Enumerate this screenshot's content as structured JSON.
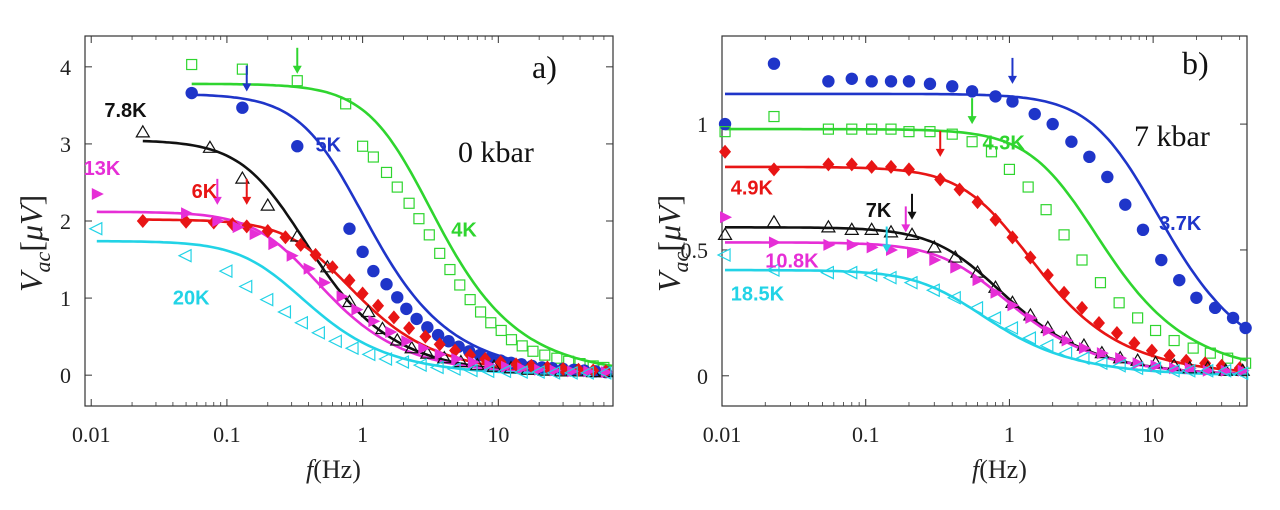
{
  "chart_data": [
    {
      "type": "scatter",
      "panel_label": "a)",
      "annotation": "0 kbar",
      "xlabel_var": "f",
      "xlabel_unit": "(Hz)",
      "ylabel": "V_ac [μV]",
      "xscale": "log",
      "xlim": [
        0.009,
        70
      ],
      "ylim": [
        -0.4,
        4.4
      ],
      "xticks": [
        0.01,
        0.1,
        1,
        10
      ],
      "xtick_labels": [
        "0.01",
        "0.1",
        "1",
        "10"
      ],
      "yticks": [
        0,
        1,
        2,
        3,
        4
      ],
      "ytick_labels": [
        "0",
        "1",
        "2",
        "3",
        "4"
      ],
      "series": [
        {
          "name": "4K",
          "color": "#2fd52f",
          "marker": "square-open",
          "fit": {
            "A": 3.78,
            "fc": 2.2
          },
          "arrow": {
            "x": 0.33,
            "y": 3.78
          },
          "label_pos": {
            "x": 4.5,
            "y": 1.8
          },
          "x": [
            0.055,
            0.13,
            0.33,
            0.75,
            1.0,
            1.2,
            1.5,
            1.8,
            2.2,
            2.6,
            3.1,
            3.7,
            4.4,
            5.2,
            6.2,
            7.4,
            8.8,
            10.5,
            12.5,
            15,
            18,
            22,
            27,
            33,
            40,
            50,
            60
          ],
          "y": [
            4.03,
            3.97,
            3.82,
            3.52,
            2.97,
            2.83,
            2.63,
            2.44,
            2.23,
            2.03,
            1.82,
            1.58,
            1.37,
            1.17,
            0.98,
            0.82,
            0.68,
            0.58,
            0.46,
            0.38,
            0.31,
            0.26,
            0.22,
            0.18,
            0.15,
            0.12,
            0.1
          ]
        },
        {
          "name": "5K",
          "color": "#1f35c9",
          "marker": "circle-filled",
          "fit": {
            "A": 3.65,
            "fc": 0.7
          },
          "arrow": {
            "x": 0.14,
            "y": 3.55
          },
          "label_pos": {
            "x": 0.45,
            "y": 2.9
          },
          "x": [
            0.055,
            0.13,
            0.33,
            0.8,
            1.0,
            1.2,
            1.5,
            1.8,
            2.1,
            2.5,
            3.0,
            3.6,
            4.3,
            5.1,
            6.1,
            7.3,
            8.7,
            10.4,
            12.4,
            14.8,
            17.7,
            21,
            25,
            30,
            36,
            43,
            52,
            62
          ],
          "y": [
            3.66,
            3.47,
            2.97,
            1.9,
            1.6,
            1.35,
            1.18,
            1.01,
            0.86,
            0.73,
            0.62,
            0.52,
            0.44,
            0.37,
            0.31,
            0.26,
            0.22,
            0.19,
            0.16,
            0.14,
            0.12,
            0.1,
            0.09,
            0.08,
            0.07,
            0.06,
            0.05,
            0.04
          ]
        },
        {
          "name": "7.8K",
          "color": "#111111",
          "marker": "triangle-open",
          "fit": {
            "A": 3.05,
            "fc": 0.26
          },
          "arrow": null,
          "label_pos": {
            "x": 0.0125,
            "y": 3.35
          },
          "x": [
            0.024,
            0.075,
            0.13,
            0.2,
            0.33,
            0.55,
            0.8,
            1.1,
            1.4,
            1.8,
            2.3,
            3,
            4,
            5.3,
            7,
            9.3,
            12.4,
            16.5,
            22,
            29,
            38,
            50,
            62
          ],
          "y": [
            3.15,
            2.95,
            2.55,
            2.2,
            1.8,
            1.4,
            0.95,
            0.82,
            0.6,
            0.45,
            0.35,
            0.28,
            0.22,
            0.17,
            0.13,
            0.11,
            0.09,
            0.07,
            0.06,
            0.05,
            0.05,
            0.04,
            0.04
          ]
        },
        {
          "name": "6K",
          "color": "#e81515",
          "marker": "diamond-filled",
          "fit": {
            "A": 2.02,
            "fc": 0.55
          },
          "arrow": {
            "x": 0.14,
            "y": 2.08
          },
          "label_pos": {
            "x": 0.055,
            "y": 2.3
          },
          "x": [
            0.024,
            0.05,
            0.08,
            0.11,
            0.14,
            0.2,
            0.27,
            0.35,
            0.45,
            0.6,
            0.8,
            1.0,
            1.3,
            1.7,
            2.2,
            2.9,
            3.7,
            4.8,
            6.2,
            8,
            10.4,
            13.5,
            17.5,
            23,
            30,
            39,
            50,
            62
          ],
          "y": [
            2.0,
            1.99,
            1.98,
            1.96,
            1.93,
            1.87,
            1.79,
            1.69,
            1.56,
            1.4,
            1.23,
            1.06,
            0.9,
            0.75,
            0.61,
            0.5,
            0.4,
            0.32,
            0.26,
            0.21,
            0.17,
            0.14,
            0.12,
            0.1,
            0.08,
            0.07,
            0.06,
            0.05
          ]
        },
        {
          "name": "13K",
          "color": "#e62ed6",
          "marker": "triangle-right-filled",
          "fit": {
            "A": 2.12,
            "fc": 0.32
          },
          "arrow": {
            "x": 0.085,
            "y": 2.08
          },
          "label_pos": {
            "x": 0.0088,
            "y": 2.6
          },
          "x": [
            0.011,
            0.05,
            0.085,
            0.12,
            0.16,
            0.22,
            0.3,
            0.4,
            0.52,
            0.7,
            0.9,
            1.2,
            1.6,
            2.1,
            2.8,
            3.7,
            4.9,
            6.5,
            8.6,
            11.4,
            15,
            20,
            26,
            35,
            46,
            62
          ],
          "y": [
            2.35,
            2.1,
            2.0,
            1.92,
            1.83,
            1.7,
            1.55,
            1.38,
            1.2,
            1.02,
            0.85,
            0.7,
            0.56,
            0.44,
            0.35,
            0.27,
            0.21,
            0.17,
            0.13,
            0.11,
            0.09,
            0.07,
            0.06,
            0.05,
            0.05,
            0.04
          ]
        },
        {
          "name": "20K",
          "color": "#22d3e6",
          "marker": "triangle-left-open",
          "fit": {
            "A": 1.74,
            "fc": 0.25
          },
          "arrow": null,
          "label_pos": {
            "x": 0.04,
            "y": 0.92
          },
          "x": [
            0.011,
            0.05,
            0.1,
            0.14,
            0.2,
            0.27,
            0.36,
            0.48,
            0.64,
            0.85,
            1.13,
            1.5,
            2,
            2.7,
            3.6,
            4.8,
            6.4,
            8.5,
            11.3,
            15,
            20,
            26,
            35,
            46,
            62
          ],
          "y": [
            1.9,
            1.55,
            1.35,
            1.15,
            0.98,
            0.82,
            0.68,
            0.55,
            0.44,
            0.35,
            0.27,
            0.21,
            0.17,
            0.13,
            0.1,
            0.08,
            0.06,
            0.05,
            0.05,
            0.04,
            0.04,
            0.03,
            0.03,
            0.03,
            0.03
          ]
        }
      ]
    },
    {
      "type": "scatter",
      "panel_label": "b)",
      "annotation": "7 kbar",
      "xlabel_var": "f",
      "xlabel_unit": "(Hz)",
      "ylabel": "V_ac [μV]",
      "xscale": "log",
      "xlim": [
        0.01,
        45
      ],
      "ylim": [
        -0.12,
        1.35
      ],
      "xticks": [
        0.01,
        0.1,
        1,
        10
      ],
      "xtick_labels": [
        "0.01",
        "0.1",
        "1",
        "10"
      ],
      "yticks": [
        0,
        0.5,
        1
      ],
      "ytick_labels": [
        "0",
        "0.5",
        "1"
      ],
      "series": [
        {
          "name": "3.7K",
          "color": "#1f35c9",
          "marker": "circle-filled",
          "fit": {
            "A": 1.12,
            "fc": 7.5
          },
          "arrow": {
            "x": 1.05,
            "y": 1.12
          },
          "label_pos": {
            "x": 11,
            "y": 0.58
          },
          "x": [
            0.0105,
            0.023,
            0.055,
            0.08,
            0.11,
            0.15,
            0.2,
            0.28,
            0.4,
            0.55,
            0.8,
            1.05,
            1.5,
            2,
            2.7,
            3.6,
            4.8,
            6.4,
            8.5,
            11.4,
            15.2,
            20,
            27,
            36,
            44
          ],
          "y": [
            1.0,
            1.24,
            1.17,
            1.18,
            1.17,
            1.17,
            1.17,
            1.16,
            1.15,
            1.13,
            1.11,
            1.09,
            1.04,
            1.0,
            0.93,
            0.87,
            0.79,
            0.68,
            0.58,
            0.46,
            0.38,
            0.31,
            0.27,
            0.23,
            0.19
          ]
        },
        {
          "name": "4.3K",
          "color": "#2fd52f",
          "marker": "square-open",
          "fit": {
            "A": 0.98,
            "fc": 2.8
          },
          "arrow": {
            "x": 0.55,
            "y": 0.96
          },
          "label_pos": {
            "x": 0.65,
            "y": 0.9
          },
          "x": [
            0.0105,
            0.023,
            0.055,
            0.08,
            0.11,
            0.15,
            0.2,
            0.28,
            0.4,
            0.55,
            0.75,
            1.0,
            1.35,
            1.8,
            2.4,
            3.2,
            4.3,
            5.8,
            7.8,
            10.4,
            14,
            19,
            25,
            33,
            44
          ],
          "y": [
            0.97,
            1.03,
            0.98,
            0.98,
            0.98,
            0.98,
            0.97,
            0.97,
            0.96,
            0.93,
            0.89,
            0.82,
            0.75,
            0.66,
            0.56,
            0.46,
            0.37,
            0.29,
            0.23,
            0.18,
            0.14,
            0.11,
            0.09,
            0.07,
            0.05
          ]
        },
        {
          "name": "4.9K",
          "color": "#e81515",
          "marker": "diamond-filled",
          "fit": {
            "A": 0.83,
            "fc": 0.95
          },
          "arrow": {
            "x": 0.33,
            "y": 0.83
          },
          "label_pos": {
            "x": 0.0115,
            "y": 0.72
          },
          "x": [
            0.0105,
            0.023,
            0.055,
            0.08,
            0.11,
            0.15,
            0.2,
            0.33,
            0.45,
            0.6,
            0.8,
            1.05,
            1.4,
            1.85,
            2.4,
            3.2,
            4.2,
            5.6,
            7.4,
            9.8,
            13,
            17,
            23,
            30,
            40
          ],
          "y": [
            0.89,
            0.82,
            0.84,
            0.84,
            0.83,
            0.83,
            0.82,
            0.78,
            0.74,
            0.69,
            0.62,
            0.55,
            0.47,
            0.4,
            0.33,
            0.27,
            0.21,
            0.17,
            0.13,
            0.1,
            0.08,
            0.06,
            0.05,
            0.04,
            0.03
          ]
        },
        {
          "name": "7K",
          "color": "#111111",
          "marker": "triangle-open",
          "fit": {
            "A": 0.59,
            "fc": 0.6
          },
          "arrow": {
            "x": 0.21,
            "y": 0.58
          },
          "label_pos": {
            "x": 0.1,
            "y": 0.63
          },
          "x": [
            0.0105,
            0.023,
            0.055,
            0.08,
            0.11,
            0.15,
            0.21,
            0.3,
            0.42,
            0.6,
            0.8,
            1.05,
            1.4,
            1.85,
            2.5,
            3.3,
            4.4,
            5.9,
            7.8,
            10.4,
            14,
            18,
            24,
            32,
            42
          ],
          "y": [
            0.56,
            0.61,
            0.59,
            0.58,
            0.58,
            0.57,
            0.56,
            0.51,
            0.47,
            0.41,
            0.35,
            0.29,
            0.24,
            0.19,
            0.15,
            0.12,
            0.09,
            0.07,
            0.06,
            0.05,
            0.04,
            0.03,
            0.03,
            0.02,
            0.02
          ]
        },
        {
          "name": "10.8K",
          "color": "#e62ed6",
          "marker": "triangle-right-filled",
          "fit": {
            "A": 0.53,
            "fc": 0.65
          },
          "arrow": {
            "x": 0.19,
            "y": 0.53
          },
          "label_pos": {
            "x": 0.02,
            "y": 0.43
          },
          "x": [
            0.0105,
            0.023,
            0.055,
            0.08,
            0.11,
            0.15,
            0.21,
            0.3,
            0.42,
            0.6,
            0.8,
            1.05,
            1.4,
            1.85,
            2.5,
            3.3,
            4.4,
            5.9,
            7.8,
            10.4,
            14,
            18,
            24,
            32,
            42
          ],
          "y": [
            0.63,
            0.53,
            0.52,
            0.52,
            0.51,
            0.5,
            0.49,
            0.46,
            0.43,
            0.38,
            0.33,
            0.28,
            0.23,
            0.18,
            0.14,
            0.11,
            0.09,
            0.07,
            0.05,
            0.04,
            0.03,
            0.03,
            0.02,
            0.02,
            0.02
          ]
        },
        {
          "name": "18.5K",
          "color": "#22d3e6",
          "marker": "triangle-left-open",
          "fit": {
            "A": 0.42,
            "fc": 0.45
          },
          "arrow": {
            "x": 0.14,
            "y": 0.45
          },
          "label_pos": {
            "x": 0.0115,
            "y": 0.3
          },
          "x": [
            0.0105,
            0.023,
            0.055,
            0.08,
            0.11,
            0.15,
            0.21,
            0.3,
            0.42,
            0.6,
            0.8,
            1.05,
            1.4,
            1.85,
            2.5,
            3.3,
            4.4,
            5.9,
            7.8,
            10.4,
            14,
            18,
            24,
            32,
            42
          ],
          "y": [
            0.48,
            0.42,
            0.41,
            0.41,
            0.4,
            0.39,
            0.37,
            0.34,
            0.31,
            0.27,
            0.23,
            0.19,
            0.15,
            0.12,
            0.09,
            0.07,
            0.05,
            0.04,
            0.03,
            0.03,
            0.02,
            0.02,
            0.02,
            0.02,
            0.01
          ]
        }
      ]
    }
  ]
}
